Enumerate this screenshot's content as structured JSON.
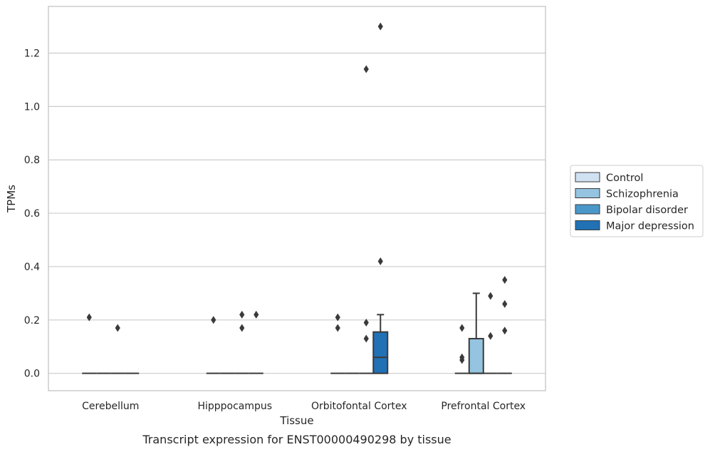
{
  "chart_data": {
    "type": "box",
    "categories": [
      "Cerebellum",
      "Hipppocampus",
      "Orbitofontal Cortex",
      "Prefrontal Cortex"
    ],
    "xlabel": "Tissue",
    "ylabel": "TPMs",
    "caption": "Transcript expression for ENST00000490298 by tissue",
    "ylim": [
      -0.065,
      1.375
    ],
    "yticks": [
      0.0,
      0.2,
      0.4,
      0.6,
      0.8,
      1.0,
      1.2
    ],
    "ytick_labels": [
      "0.0",
      "0.2",
      "0.4",
      "0.6",
      "0.8",
      "1.0",
      "1.2"
    ],
    "grid": "horizontal",
    "legend_position": "center-right",
    "series": [
      {
        "name": "Control",
        "color": "#d0e1f2",
        "boxes": [
          {
            "q1": 0,
            "median": 0,
            "q3": 0,
            "whisker_low": 0,
            "whisker_high": 0,
            "outliers": [
              0.21
            ]
          },
          {
            "q1": 0,
            "median": 0,
            "q3": 0,
            "whisker_low": 0,
            "whisker_high": 0,
            "outliers": [
              0.2
            ]
          },
          {
            "q1": 0,
            "median": 0,
            "q3": 0,
            "whisker_low": 0,
            "whisker_high": 0,
            "outliers": [
              0.21,
              0.17
            ]
          },
          {
            "q1": 0,
            "median": 0,
            "q3": 0,
            "whisker_low": 0,
            "whisker_high": 0,
            "outliers": [
              0.17,
              0.06,
              0.05
            ]
          }
        ]
      },
      {
        "name": "Schizophrenia",
        "color": "#94c4df",
        "boxes": [
          {
            "q1": 0,
            "median": 0,
            "q3": 0,
            "whisker_low": 0,
            "whisker_high": 0,
            "outliers": []
          },
          {
            "q1": 0,
            "median": 0,
            "q3": 0,
            "whisker_low": 0,
            "whisker_high": 0,
            "outliers": []
          },
          {
            "q1": 0,
            "median": 0,
            "q3": 0,
            "whisker_low": 0,
            "whisker_high": 0,
            "outliers": []
          },
          {
            "q1": 0,
            "median": 0,
            "q3": 0.13,
            "whisker_low": 0,
            "whisker_high": 0.3,
            "outliers": []
          }
        ]
      },
      {
        "name": "Bipolar disorder",
        "color": "#4a98c9",
        "boxes": [
          {
            "q1": 0,
            "median": 0,
            "q3": 0,
            "whisker_low": 0,
            "whisker_high": 0,
            "outliers": [
              0.17
            ]
          },
          {
            "q1": 0,
            "median": 0,
            "q3": 0,
            "whisker_low": 0,
            "whisker_high": 0,
            "outliers": [
              0.22,
              0.17
            ]
          },
          {
            "q1": 0,
            "median": 0,
            "q3": 0,
            "whisker_low": 0,
            "whisker_high": 0,
            "outliers": [
              1.14,
              0.19,
              0.13
            ]
          },
          {
            "q1": 0,
            "median": 0,
            "q3": 0,
            "whisker_low": 0,
            "whisker_high": 0,
            "outliers": [
              0.29,
              0.14
            ]
          }
        ]
      },
      {
        "name": "Major depression",
        "color": "#2171b5",
        "boxes": [
          {
            "q1": 0,
            "median": 0,
            "q3": 0,
            "whisker_low": 0,
            "whisker_high": 0,
            "outliers": []
          },
          {
            "q1": 0,
            "median": 0,
            "q3": 0,
            "whisker_low": 0,
            "whisker_high": 0,
            "outliers": [
              0.22
            ]
          },
          {
            "q1": 0,
            "median": 0.06,
            "q3": 0.155,
            "whisker_low": 0,
            "whisker_high": 0.22,
            "outliers": [
              1.3,
              0.42
            ]
          },
          {
            "q1": 0,
            "median": 0,
            "q3": 0,
            "whisker_low": 0,
            "whisker_high": 0,
            "outliers": [
              0.35,
              0.26,
              0.16
            ]
          }
        ]
      }
    ]
  }
}
